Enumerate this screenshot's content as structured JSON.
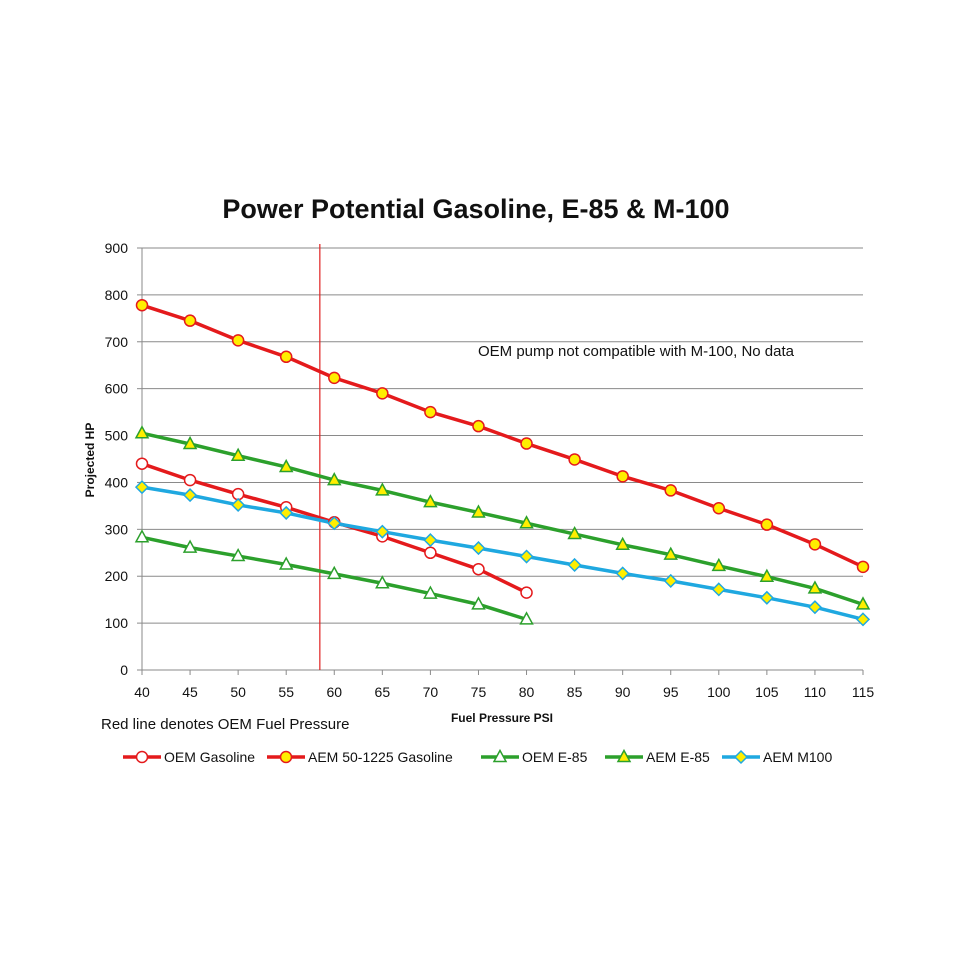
{
  "chart_data": {
    "type": "line",
    "title": "Power Potential Gasoline, E-85 & M-100",
    "xlabel": "Fuel Pressure PSI",
    "ylabel": "Projected HP",
    "xlim": [
      40,
      115
    ],
    "ylim": [
      0,
      900
    ],
    "x_ticks": [
      40,
      45,
      50,
      55,
      60,
      65,
      70,
      75,
      80,
      85,
      90,
      95,
      100,
      105,
      110,
      115
    ],
    "y_ticks": [
      0,
      100,
      200,
      300,
      400,
      500,
      600,
      700,
      800,
      900
    ],
    "grid": "horizontal",
    "vertical_marker": {
      "x": 58.5,
      "color": "#e02020"
    },
    "annotation": "OEM pump not compatible with M-100, No data",
    "footnote": "Red line denotes OEM Fuel Pressure",
    "legend_position": "bottom",
    "series": [
      {
        "name": "OEM Gasoline",
        "color": "#e41a1c",
        "marker": "circle",
        "marker_fill": "#ffffff",
        "marker_stroke": "#e41a1c",
        "x": [
          40,
          45,
          50,
          55,
          60,
          65,
          70,
          75,
          80
        ],
        "values": [
          440,
          405,
          375,
          347,
          315,
          285,
          250,
          215,
          165
        ]
      },
      {
        "name": "AEM 50-1225 Gasoline",
        "color": "#e41a1c",
        "marker": "circle",
        "marker_fill": "#ffee00",
        "marker_stroke": "#e41a1c",
        "x": [
          40,
          45,
          50,
          55,
          60,
          65,
          70,
          75,
          80,
          85,
          90,
          95,
          100,
          105,
          110,
          115
        ],
        "values": [
          778,
          745,
          703,
          668,
          623,
          590,
          550,
          520,
          483,
          449,
          413,
          383,
          345,
          310,
          268,
          220
        ]
      },
      {
        "name": "OEM E-85",
        "color": "#2ca02c",
        "marker": "triangle",
        "marker_fill": "#ffffff",
        "marker_stroke": "#2ca02c",
        "x": [
          40,
          45,
          50,
          55,
          60,
          65,
          70,
          75,
          80
        ],
        "values": [
          283,
          261,
          243,
          225,
          205,
          185,
          163,
          140,
          108
        ]
      },
      {
        "name": "AEM E-85",
        "color": "#2ca02c",
        "marker": "triangle",
        "marker_fill": "#ffee00",
        "marker_stroke": "#2ca02c",
        "x": [
          40,
          45,
          50,
          55,
          60,
          65,
          70,
          75,
          80,
          85,
          90,
          95,
          100,
          105,
          110,
          115
        ],
        "values": [
          505,
          482,
          457,
          433,
          405,
          383,
          358,
          336,
          313,
          290,
          267,
          246,
          222,
          199,
          174,
          140
        ]
      },
      {
        "name": "AEM M100",
        "color": "#1fa8e0",
        "marker": "diamond",
        "marker_fill": "#ffee00",
        "marker_stroke": "#1fa8e0",
        "x": [
          40,
          45,
          50,
          55,
          60,
          65,
          70,
          75,
          80,
          85,
          90,
          95,
          100,
          105,
          110,
          115
        ],
        "values": [
          390,
          373,
          352,
          335,
          313,
          295,
          277,
          260,
          242,
          224,
          206,
          190,
          172,
          154,
          134,
          108
        ]
      }
    ]
  }
}
